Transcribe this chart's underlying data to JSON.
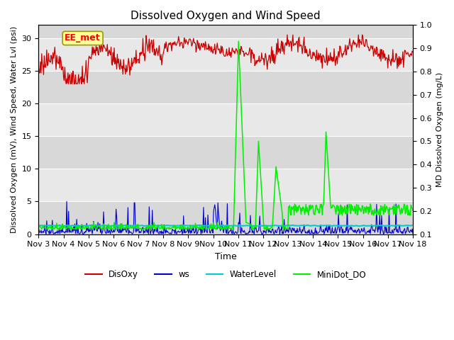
{
  "title": "Dissolved Oxygen and Wind Speed",
  "xlabel": "Time",
  "ylabel_left": "Dissolved Oxygen (mV), Wind Speed, Water Lvl (psi)",
  "ylabel_right": "MD Dissolved Oxygen (mg/L)",
  "annotation_text": "EE_met",
  "xlim": [
    0,
    15
  ],
  "ylim_left": [
    0,
    32
  ],
  "ylim_right": [
    0.1,
    1.0
  ],
  "yticks_left": [
    0,
    5,
    10,
    15,
    20,
    25,
    30
  ],
  "yticks_right": [
    0.1,
    0.2,
    0.3,
    0.4,
    0.5,
    0.6,
    0.7,
    0.8,
    0.9,
    1.0
  ],
  "xtick_labels": [
    "Nov 3",
    "Nov 4",
    "Nov 5",
    "Nov 6",
    "Nov 7",
    "Nov 8",
    "Nov 9",
    "Nov 10",
    "Nov 11",
    "Nov 12",
    "Nov 13",
    "Nov 14",
    "Nov 15",
    "Nov 16",
    "Nov 17",
    "Nov 18"
  ],
  "bg_color": "#d8d8d8",
  "band_colors": [
    "#e8e8e8",
    "#d0d0d0"
  ],
  "grid_color": "white",
  "colors": {
    "DisOxy": "#cc0000",
    "ws": "#0000cc",
    "WaterLevel": "#00cccc",
    "MiniDot_DO": "#00ee00"
  }
}
